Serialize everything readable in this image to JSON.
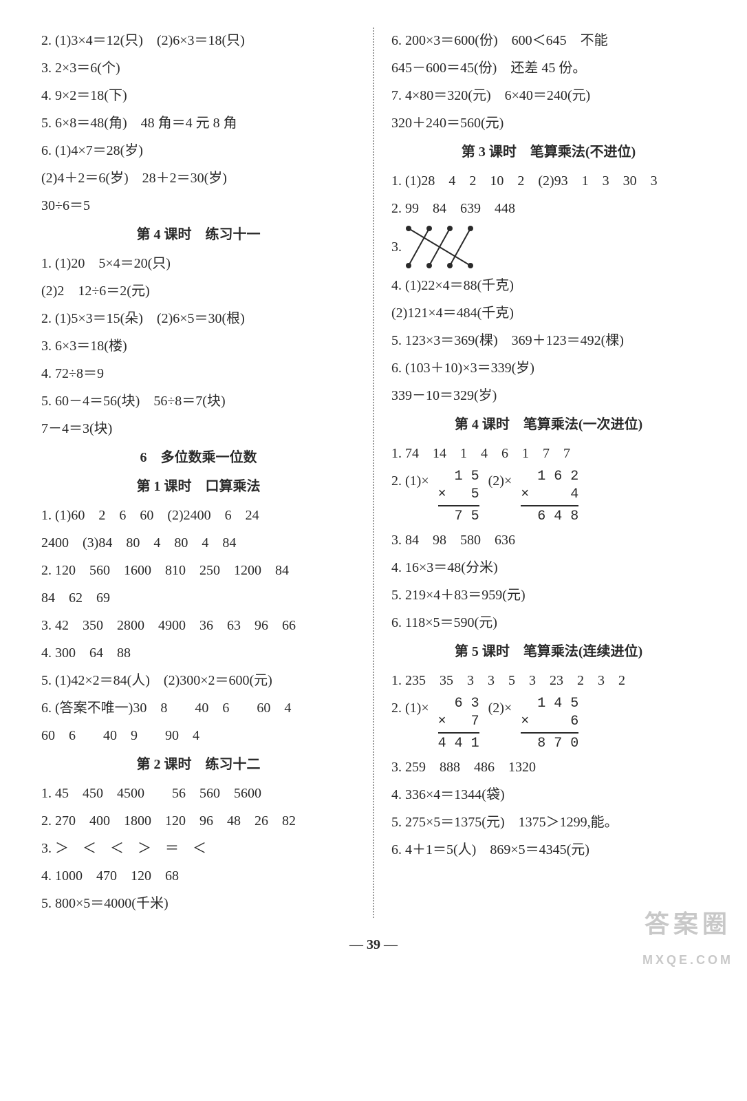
{
  "page_number": "39",
  "watermark": {
    "line1": "答案圈",
    "line2": "MXQE.COM"
  },
  "left": {
    "top_lines": [
      "2. (1)3×4＝12(只)　(2)6×3＝18(只)",
      "3. 2×3＝6(个)",
      "4. 9×2＝18(下)",
      "5. 6×8＝48(角)　48 角＝4 元 8 角",
      "6. (1)4×7＝28(岁)",
      "(2)4＋2＝6(岁)　28＋2＝30(岁)",
      "30÷6＝5"
    ],
    "h1": "第 4 课时　练习十一",
    "sec1": [
      "1. (1)20　5×4＝20(只)",
      "(2)2　12÷6＝2(元)",
      "2. (1)5×3＝15(朵)　(2)6×5＝30(根)",
      "3. 6×3＝18(楼)",
      "4. 72÷8＝9",
      "5. 60－4＝56(块)　56÷8＝7(块)",
      "7－4＝3(块)"
    ],
    "h2": "6　多位数乘一位数",
    "h3": "第 1 课时　口算乘法",
    "sec2": [
      "1. (1)60　2　6　60　(2)2400　6　24",
      "2400　(3)84　80　4　80　4　84",
      "2. 120　560　1600　810　250　1200　84",
      "84　62　69",
      "3. 42　350　2800　4900　36　63　96　66",
      "4. 300　64　88",
      "5. (1)42×2＝84(人)　(2)300×2＝600(元)",
      "6. (答案不唯一)30　8　　40　6　　60　4",
      "60　6　　40　9　　90　4"
    ],
    "h4": "第 2 课时　练习十二",
    "sec3": [
      "1. 45　450　4500　　56　560　5600",
      "2. 270　400　1800　120　96　48　26　82",
      "3. ＞　＜　＜　＞　＝　＜",
      "4. 1000　470　120　68",
      "5. 800×5＝4000(千米)"
    ]
  },
  "right": {
    "top_lines": [
      "6. 200×3＝600(份)　600＜645　不能",
      "645－600＝45(份)　还差 45 份。",
      "7. 4×80＝320(元)　6×40＝240(元)",
      "320＋240＝560(元)"
    ],
    "h1": "第 3 课时　笔算乘法(不进位)",
    "sec1": [
      "1. (1)28　4　2　10　2　(2)93　1　3　30　3",
      "2. 99　84　639　448"
    ],
    "q3_label": "3.",
    "cross": {
      "width": 110,
      "height": 70,
      "top_x": [
        10,
        40,
        70,
        100
      ],
      "bot_x": [
        10,
        40,
        70,
        100
      ],
      "edges": [
        [
          0,
          3
        ],
        [
          1,
          0
        ],
        [
          2,
          1
        ],
        [
          3,
          2
        ]
      ],
      "stroke": "#2a2a2a",
      "stroke_width": 2,
      "dot_r": 4
    },
    "sec1b": [
      "4. (1)22×4＝88(千克)",
      "(2)121×4＝484(千克)",
      "5. 123×3＝369(棵)　369＋123＝492(棵)",
      "6. (103＋10)×3＝339(岁)",
      "339－10＝329(岁)"
    ],
    "h2": "第 4 课时　笔算乘法(一次进位)",
    "sec2": [
      "1. 74　14　1　4　6　1　7　7"
    ],
    "q2_prefix": "2. (1)×",
    "q2_mid": "(2)×",
    "calc2a": {
      "top": "  1 5",
      "mid": "×   5",
      "res": "  7 5"
    },
    "calc2b": {
      "top": "  1 6 2",
      "mid": "×     4",
      "res": "  6 4 8"
    },
    "sec2b": [
      "3. 84　98　580　636",
      "4. 16×3＝48(分米)",
      "5. 219×4＋83＝959(元)",
      "6. 118×5＝590(元)"
    ],
    "h3": "第 5 课时　笔算乘法(连续进位)",
    "sec3": [
      "1. 235　35　3　3　5　3　23　2　3　2"
    ],
    "q2b_prefix": "2. (1)×",
    "q2b_mid": "(2)×",
    "calc3a": {
      "top": "  6 3",
      "mid": "×   7",
      "res": "4 4 1"
    },
    "calc3b": {
      "top": "  1 4 5",
      "mid": "×     6",
      "res": "  8 7 0"
    },
    "sec3b": [
      "3. 259　888　486　1320",
      "4. 336×4＝1344(袋)",
      "5. 275×5＝1375(元)　1375＞1299,能。",
      "6. 4＋1＝5(人)　869×5＝4345(元)"
    ]
  }
}
